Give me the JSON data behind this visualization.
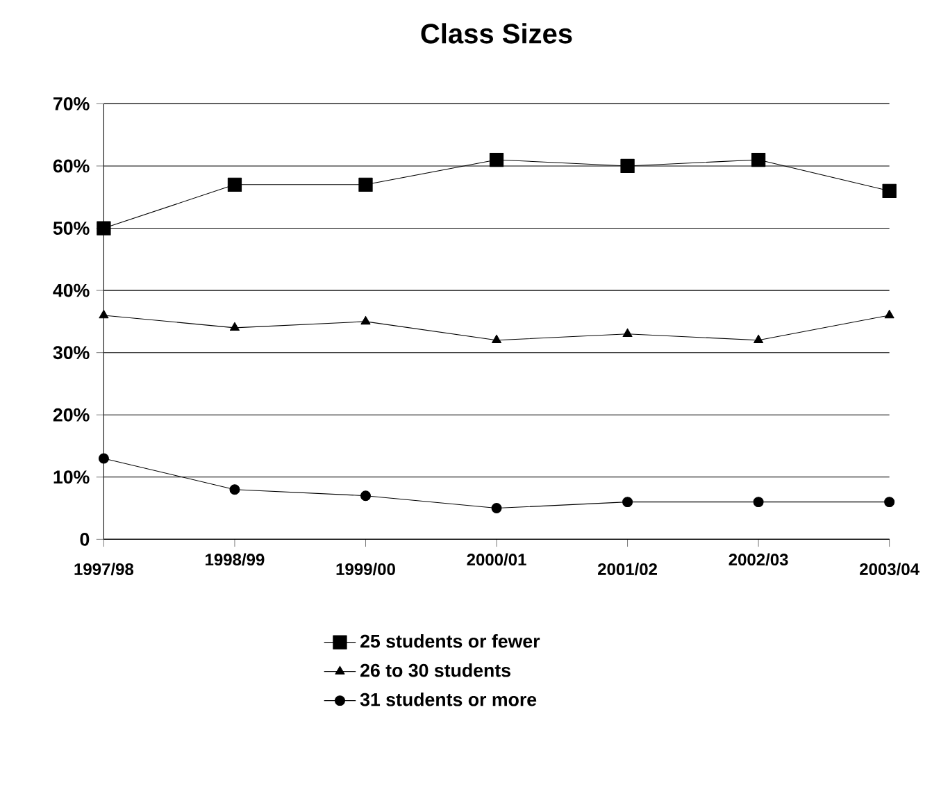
{
  "chart_data": {
    "type": "line",
    "title": "Class Sizes",
    "categories": [
      "1997/98",
      "1998/99",
      "1999/00",
      "2000/01",
      "2001/02",
      "2002/03",
      "2003/04"
    ],
    "series": [
      {
        "name": "25 students or fewer",
        "color": "#000000",
        "marker": "square",
        "values": [
          50,
          57,
          57,
          61,
          60,
          61,
          56
        ]
      },
      {
        "name": "26 to 30 students",
        "color": "#000000",
        "marker": "triangle",
        "values": [
          36,
          34,
          35,
          32,
          33,
          32,
          36
        ]
      },
      {
        "name": "31 students or more",
        "color": "#000000",
        "marker": "circle",
        "values": [
          13,
          8,
          7,
          5,
          6,
          6,
          6
        ]
      }
    ],
    "ylim": [
      0,
      70
    ],
    "yticks": [
      {
        "value": 0,
        "label": "0"
      },
      {
        "value": 10,
        "label": "10%"
      },
      {
        "value": 20,
        "label": "20%"
      },
      {
        "value": 30,
        "label": "30%"
      },
      {
        "value": 40,
        "label": "40%"
      },
      {
        "value": 50,
        "label": "50%"
      },
      {
        "value": 60,
        "label": "60%"
      },
      {
        "value": 70,
        "label": "70%"
      }
    ],
    "grid": "y",
    "legend": "bottom",
    "line_style": "solid"
  }
}
